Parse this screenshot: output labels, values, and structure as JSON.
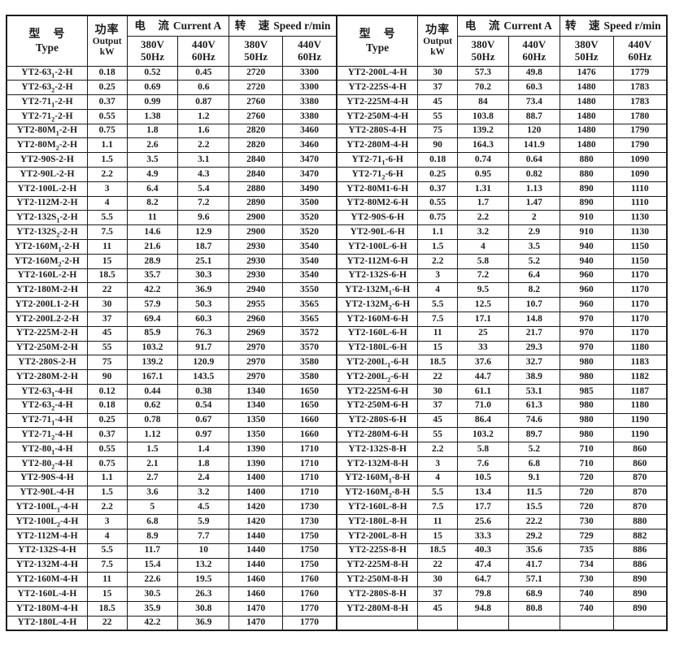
{
  "page": {
    "background": "#ffffff",
    "text_color": "#1c1c1c",
    "border_color": "#1c1c1c"
  },
  "header": {
    "type_zh": "型　号",
    "type_en": "Type",
    "power_zh": "功率",
    "power_en": "Output",
    "power_unit": "kW",
    "current_zh": "电　流",
    "current_en": "Current A",
    "speed_zh": "转　速",
    "speed_en": "Speed r/min",
    "v380": "380V",
    "hz50": "50Hz",
    "v440": "440V",
    "hz60": "60Hz"
  },
  "tables": [
    {
      "side": "left",
      "rows": [
        [
          "YT2-63₁-2-H",
          "0.18",
          "0.52",
          "0.45",
          "2720",
          "3300"
        ],
        [
          "YT2-63₂-2-H",
          "0.25",
          "0.69",
          "0.6",
          "2720",
          "3300"
        ],
        [
          "YT2-71₁-2-H",
          "0.37",
          "0.99",
          "0.87",
          "2760",
          "3380"
        ],
        [
          "YT2-71₂-2-H",
          "0.55",
          "1.38",
          "1.2",
          "2760",
          "3380"
        ],
        [
          "YT2-80M₁-2-H",
          "0.75",
          "1.8",
          "1.6",
          "2820",
          "3460"
        ],
        [
          "YT2-80M₂-2-H",
          "1.1",
          "2.6",
          "2.2",
          "2820",
          "3460"
        ],
        [
          "YT2-90S-2-H",
          "1.5",
          "3.5",
          "3.1",
          "2840",
          "3470"
        ],
        [
          "YT2-90L-2-H",
          "2.2",
          "4.9",
          "4.3",
          "2840",
          "3470"
        ],
        [
          "YT2-100L-2-H",
          "3",
          "6.4",
          "5.4",
          "2880",
          "3490"
        ],
        [
          "YT2-112M-2-H",
          "4",
          "8.2",
          "7.2",
          "2890",
          "3500"
        ],
        [
          "YT2-132S₁-2-H",
          "5.5",
          "11",
          "9.6",
          "2900",
          "3520"
        ],
        [
          "YT2-132S₂-2-H",
          "7.5",
          "14.6",
          "12.9",
          "2900",
          "3520"
        ],
        [
          "YT2-160M₁-2-H",
          "11",
          "21.6",
          "18.7",
          "2930",
          "3540"
        ],
        [
          "YT2-160M₂-2-H",
          "15",
          "28.9",
          "25.1",
          "2930",
          "3540"
        ],
        [
          "YT2-160L-2-H",
          "18.5",
          "35.7",
          "30.3",
          "2930",
          "3540"
        ],
        [
          "YT2-180M-2-H",
          "22",
          "42.2",
          "36.9",
          "2940",
          "3550"
        ],
        [
          "YT2-200L1-2-H",
          "30",
          "57.9",
          "50.3",
          "2955",
          "3565"
        ],
        [
          "YT2-200L2-2-H",
          "37",
          "69.4",
          "60.3",
          "2960",
          "3565"
        ],
        [
          "YT2-225M-2-H",
          "45",
          "85.9",
          "76.3",
          "2969",
          "3572"
        ],
        [
          "YT2-250M-2-H",
          "55",
          "103.2",
          "91.7",
          "2970",
          "3570"
        ],
        [
          "YT2-280S-2-H",
          "75",
          "139.2",
          "120.9",
          "2970",
          "3580"
        ],
        [
          "YT2-280M-2-H",
          "90",
          "167.1",
          "143.5",
          "2970",
          "3580"
        ],
        [
          "YT2-63₁-4-H",
          "0.12",
          "0.44",
          "0.38",
          "1340",
          "1650"
        ],
        [
          "YT2-63₂-4-H",
          "0.18",
          "0.62",
          "0.54",
          "1340",
          "1650"
        ],
        [
          "YT2-71₁-4-H",
          "0.25",
          "0.78",
          "0.67",
          "1350",
          "1660"
        ],
        [
          "YT2-71₂-4-H",
          "0.37",
          "1.12",
          "0.97",
          "1350",
          "1660"
        ],
        [
          "YT2-80₁-4-H",
          "0.55",
          "1.5",
          "1.4",
          "1390",
          "1710"
        ],
        [
          "YT2-80₂-4-H",
          "0.75",
          "2.1",
          "1.8",
          "1390",
          "1710"
        ],
        [
          "YT2-90S-4-H",
          "1.1",
          "2.7",
          "2.4",
          "1400",
          "1710"
        ],
        [
          "YT2-90L-4-H",
          "1.5",
          "3.6",
          "3.2",
          "1400",
          "1710"
        ],
        [
          "YT2-100L₁-4-H",
          "2.2",
          "5",
          "4.5",
          "1420",
          "1730"
        ],
        [
          "YT2-100L₂-4-H",
          "3",
          "6.8",
          "5.9",
          "1420",
          "1730"
        ],
        [
          "YT2-112M-4-H",
          "4",
          "8.9",
          "7.7",
          "1440",
          "1750"
        ],
        [
          "YT2-132S-4-H",
          "5.5",
          "11.7",
          "10",
          "1440",
          "1750"
        ],
        [
          "YT2-132M-4-H",
          "7.5",
          "15.4",
          "13.2",
          "1440",
          "1750"
        ],
        [
          "YT2-160M-4-H",
          "11",
          "22.6",
          "19.5",
          "1460",
          "1760"
        ],
        [
          "YT2-160L-4-H",
          "15",
          "30.5",
          "26.3",
          "1460",
          "1760"
        ],
        [
          "YT2-180M-4-H",
          "18.5",
          "35.9",
          "30.8",
          "1470",
          "1770"
        ],
        [
          "YT2-180L-4-H",
          "22",
          "42.2",
          "36.9",
          "1470",
          "1770"
        ]
      ]
    },
    {
      "side": "right",
      "rows": [
        [
          "YT2-200L-4-H",
          "30",
          "57.3",
          "49.8",
          "1476",
          "1779"
        ],
        [
          "YT2-225S-4-H",
          "37",
          "70.2",
          "60.3",
          "1480",
          "1783"
        ],
        [
          "YT2-225M-4-H",
          "45",
          "84",
          "73.4",
          "1480",
          "1783"
        ],
        [
          "YT2-250M-4-H",
          "55",
          "103.8",
          "88.7",
          "1480",
          "1780"
        ],
        [
          "YT2-280S-4-H",
          "75",
          "139.2",
          "120",
          "1480",
          "1790"
        ],
        [
          "YT2-280M-4-H",
          "90",
          "164.3",
          "141.9",
          "1480",
          "1790"
        ],
        [
          "YT2-71₁-6-H",
          "0.18",
          "0.74",
          "0.64",
          "880",
          "1090"
        ],
        [
          "YT2-71₂-6-H",
          "0.25",
          "0.95",
          "0.82",
          "880",
          "1090"
        ],
        [
          "YT2-80M1-6-H",
          "0.37",
          "1.31",
          "1.13",
          "890",
          "1110"
        ],
        [
          "YT2-80M2-6-H",
          "0.55",
          "1.7",
          "1.47",
          "890",
          "1110"
        ],
        [
          "YT2-90S-6-H",
          "0.75",
          "2.2",
          "2",
          "910",
          "1130"
        ],
        [
          "YT2-90L-6-H",
          "1.1",
          "3.2",
          "2.9",
          "910",
          "1130"
        ],
        [
          "YT2-100L-6-H",
          "1.5",
          "4",
          "3.5",
          "940",
          "1150"
        ],
        [
          "YT2-112M-6-H",
          "2.2",
          "5.8",
          "5.2",
          "940",
          "1150"
        ],
        [
          "YT2-132S-6-H",
          "3",
          "7.2",
          "6.4",
          "960",
          "1170"
        ],
        [
          "YT2-132M₁-6-H",
          "4",
          "9.5",
          "8.2",
          "960",
          "1170"
        ],
        [
          "YT2-132M₂-6-H",
          "5.5",
          "12.5",
          "10.7",
          "960",
          "1170"
        ],
        [
          "YT2-160M-6-H",
          "7.5",
          "17.1",
          "14.8",
          "970",
          "1170"
        ],
        [
          "YT2-160L-6-H",
          "11",
          "25",
          "21.7",
          "970",
          "1170"
        ],
        [
          "YT2-180L-6-H",
          "15",
          "33",
          "29.3",
          "970",
          "1180"
        ],
        [
          "YT2-200L₁-6-H",
          "18.5",
          "37.6",
          "32.7",
          "980",
          "1183"
        ],
        [
          "YT2-200L₂-6-H",
          "22",
          "44.7",
          "38.9",
          "980",
          "1182"
        ],
        [
          "YT2-225M-6-H",
          "30",
          "61.1",
          "53.1",
          "985",
          "1187"
        ],
        [
          "YT2-250M-6-H",
          "37",
          "71.0",
          "61.3",
          "980",
          "1180"
        ],
        [
          "YT2-280S-6-H",
          "45",
          "86.4",
          "74.6",
          "980",
          "1190"
        ],
        [
          "YT2-280M-6-H",
          "55",
          "103.2",
          "89.7",
          "980",
          "1190"
        ],
        [
          "YT2-132S-8-H",
          "2.2",
          "5.8",
          "5.2",
          "710",
          "860"
        ],
        [
          "YT2-132M-8-H",
          "3",
          "7.6",
          "6.8",
          "710",
          "860"
        ],
        [
          "YT2-160M₁-8-H",
          "4",
          "10.5",
          "9.1",
          "720",
          "870"
        ],
        [
          "YT2-160M₂-8-H",
          "5.5",
          "13.4",
          "11.5",
          "720",
          "870"
        ],
        [
          "YT2-160L-8-H",
          "7.5",
          "17.7",
          "15.5",
          "720",
          "870"
        ],
        [
          "YT2-180L-8-H",
          "11",
          "25.6",
          "22.2",
          "730",
          "880"
        ],
        [
          "YT2-200L-8-H",
          "15",
          "33.3",
          "29.2",
          "729",
          "882"
        ],
        [
          "YT2-225S-8-H",
          "18.5",
          "40.3",
          "35.6",
          "735",
          "886"
        ],
        [
          "YT2-225M-8-H",
          "22",
          "47.4",
          "41.7",
          "734",
          "886"
        ],
        [
          "YT2-250M-8-H",
          "30",
          "64.7",
          "57.1",
          "730",
          "890"
        ],
        [
          "YT2-280S-8-H",
          "37",
          "79.8",
          "68.9",
          "740",
          "890"
        ],
        [
          "YT2-280M-8-H",
          "45",
          "94.8",
          "80.8",
          "740",
          "890"
        ],
        [
          "",
          "",
          "",
          "",
          "",
          ""
        ]
      ]
    }
  ]
}
